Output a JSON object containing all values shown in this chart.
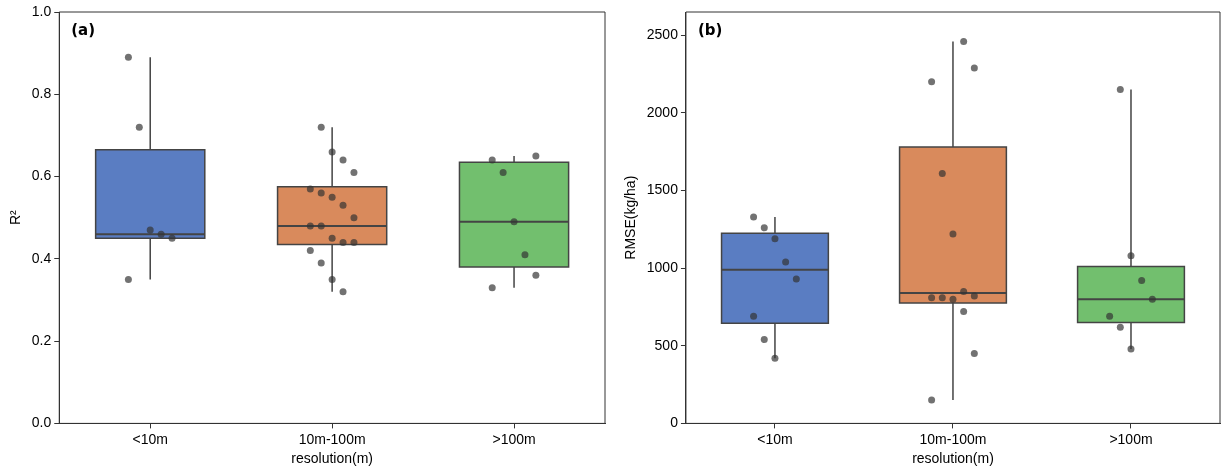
{
  "chart_data": [
    {
      "type": "box",
      "annotations": [
        "(a)"
      ],
      "xlabel": "resolution(m)",
      "ylabel": "R²",
      "categories": [
        "<10m",
        "10m-100m",
        ">100m"
      ],
      "colors": [
        "#5a7dc2",
        "#d98a5c",
        "#72bf6e"
      ],
      "boxes": [
        {
          "low": 0.35,
          "q1": 0.45,
          "median": 0.46,
          "q3": 0.665,
          "high": 0.89
        },
        {
          "low": 0.32,
          "q1": 0.435,
          "median": 0.48,
          "q3": 0.575,
          "high": 0.72
        },
        {
          "low": 0.33,
          "q1": 0.38,
          "median": 0.49,
          "q3": 0.635,
          "high": 0.65
        }
      ],
      "series": [
        {
          "type": "scatter",
          "color": "#333333",
          "x": [
            "<10m",
            "<10m",
            "<10m",
            "<10m",
            "<10m",
            "<10m",
            "10m-100m",
            "10m-100m",
            "10m-100m",
            "10m-100m",
            "10m-100m",
            "10m-100m",
            "10m-100m",
            "10m-100m",
            "10m-100m",
            "10m-100m",
            "10m-100m",
            "10m-100m",
            "10m-100m",
            "10m-100m",
            "10m-100m",
            "10m-100m",
            "10m-100m",
            "10m-100m",
            ">100m",
            ">100m",
            ">100m",
            ">100m",
            ">100m",
            ">100m",
            ">100m"
          ],
          "values": [
            0.89,
            0.72,
            0.47,
            0.46,
            0.45,
            0.35,
            0.72,
            0.66,
            0.64,
            0.61,
            0.57,
            0.56,
            0.55,
            0.53,
            0.5,
            0.48,
            0.48,
            0.45,
            0.44,
            0.44,
            0.42,
            0.39,
            0.35,
            0.32,
            0.65,
            0.64,
            0.61,
            0.49,
            0.41,
            0.36,
            0.33
          ]
        }
      ],
      "ylim": [
        0,
        1
      ],
      "yticks": [
        {
          "value": 0,
          "label": "0.0"
        },
        {
          "value": 0.2,
          "label": "0.2"
        },
        {
          "value": 0.4,
          "label": "0.4"
        },
        {
          "value": 0.6,
          "label": "0.6"
        },
        {
          "value": 0.8,
          "label": "0.8"
        },
        {
          "value": 1,
          "label": "1.0"
        }
      ],
      "grid": false,
      "legend": false,
      "marker": "circle"
    },
    {
      "type": "box",
      "annotations": [
        "(b)"
      ],
      "xlabel": "resolution(m)",
      "ylabel": "RMSE(kg/ha)",
      "categories": [
        "<10m",
        "10m-100m",
        ">100m"
      ],
      "colors": [
        "#5a7dc2",
        "#d98a5c",
        "#72bf6e"
      ],
      "boxes": [
        {
          "low": 420,
          "q1": 645,
          "median": 990,
          "q3": 1225,
          "high": 1330
        },
        {
          "low": 150,
          "q1": 775,
          "median": 840,
          "q3": 1780,
          "high": 2460
        },
        {
          "low": 480,
          "q1": 650,
          "median": 800,
          "q3": 1010,
          "high": 2150
        }
      ],
      "series": [
        {
          "type": "scatter",
          "color": "#333333",
          "x": [
            "<10m",
            "<10m",
            "<10m",
            "<10m",
            "<10m",
            "<10m",
            "<10m",
            "<10m",
            "10m-100m",
            "10m-100m",
            "10m-100m",
            "10m-100m",
            "10m-100m",
            "10m-100m",
            "10m-100m",
            "10m-100m",
            "10m-100m",
            "10m-100m",
            "10m-100m",
            "10m-100m",
            "10m-100m",
            ">100m",
            ">100m",
            ">100m",
            ">100m",
            ">100m",
            ">100m",
            ">100m"
          ],
          "values": [
            1330,
            1260,
            1190,
            1040,
            930,
            690,
            540,
            420,
            2460,
            2290,
            2200,
            1610,
            1220,
            850,
            820,
            810,
            810,
            800,
            720,
            450,
            150,
            2150,
            1080,
            920,
            800,
            690,
            620,
            480
          ]
        }
      ],
      "ylim": [
        0,
        2650
      ],
      "yticks": [
        0,
        500,
        1000,
        1500,
        2000,
        2500
      ],
      "grid": false,
      "legend": false,
      "marker": "circle"
    }
  ]
}
